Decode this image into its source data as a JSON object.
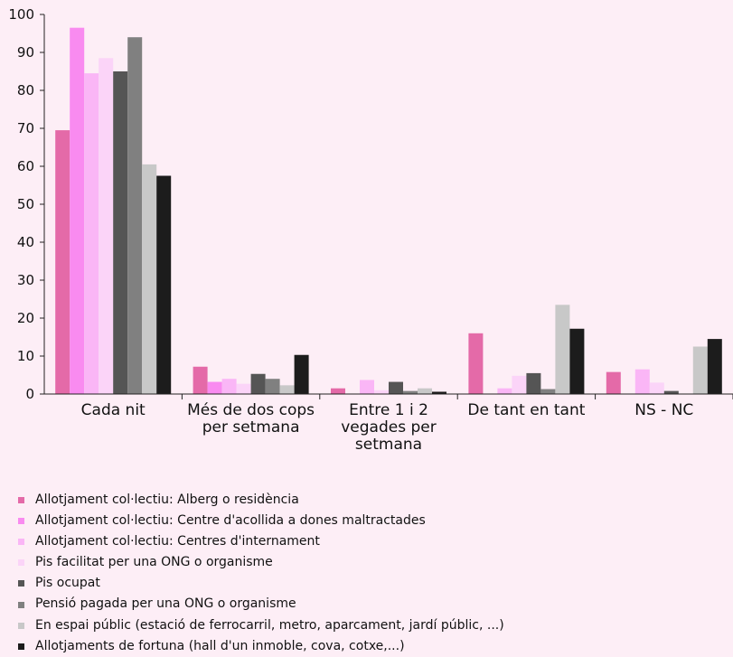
{
  "chart_data": {
    "type": "bar",
    "categories": [
      [
        "Cada nit"
      ],
      [
        "Més de dos cops",
        "per setmana"
      ],
      [
        "Entre 1 i 2",
        "vegades per",
        "setmana"
      ],
      [
        "De tant en tant"
      ],
      [
        "NS - NC"
      ]
    ],
    "ylim": [
      0,
      100
    ],
    "yticks": [
      0,
      10,
      20,
      30,
      40,
      50,
      60,
      70,
      80,
      90,
      100
    ],
    "grid": false,
    "legend_position": "bottom",
    "series": [
      {
        "name": "Allotjament col·lectiu: Alberg o residència",
        "color": "#e46aa8",
        "values": [
          69.5,
          7.2,
          1.5,
          16.0,
          5.8
        ]
      },
      {
        "name": "Allotjament col·lectiu: Centre d'acollida a dones maltractades",
        "color": "#f98bf0",
        "values": [
          96.5,
          3.2,
          0.0,
          0.0,
          0.0
        ]
      },
      {
        "name": "Allotjament col·lectiu: Centres d'internament",
        "color": "#fab6f6",
        "values": [
          84.5,
          4.0,
          3.7,
          1.5,
          6.5
        ]
      },
      {
        "name": "Pis facilitat per una ONG o organisme",
        "color": "#fbd4f8",
        "values": [
          88.5,
          2.7,
          1.0,
          4.8,
          3.0
        ]
      },
      {
        "name": "Pis ocupat",
        "color": "#555555",
        "values": [
          85.0,
          5.3,
          3.2,
          5.5,
          0.8
        ]
      },
      {
        "name": "Pensió pagada per una ONG o organisme",
        "color": "#808080",
        "values": [
          94.0,
          4.0,
          0.8,
          1.3,
          0.0
        ]
      },
      {
        "name": "En espai públic (estació de ferrocarril, metro, aparcament, jardí públic, ...)",
        "color": "#c8c8c8",
        "values": [
          60.5,
          2.3,
          1.5,
          23.5,
          12.5
        ]
      },
      {
        "name": "Allotjaments de fortuna (hall d'un inmoble, cova, cotxe,...)",
        "color": "#1c1c1c",
        "values": [
          57.5,
          10.3,
          0.6,
          17.2,
          14.5
        ]
      }
    ]
  }
}
